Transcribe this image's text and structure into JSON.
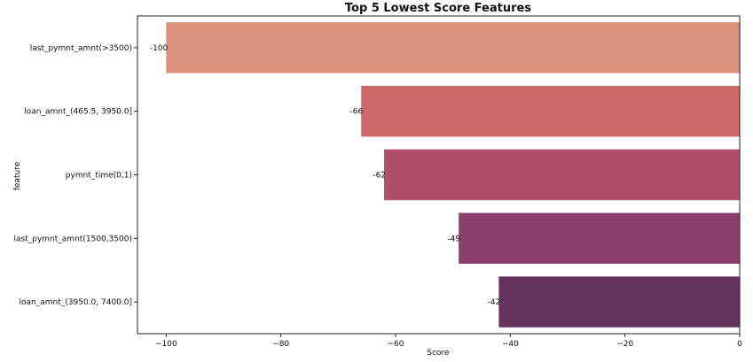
{
  "chart_data": {
    "type": "bar",
    "orientation": "horizontal",
    "title": "Top 5 Lowest Score Features",
    "xlabel": "Score",
    "ylabel": "feature",
    "categories": [
      "last_pymnt_amnt(>3500)",
      "loan_amnt_(465.5, 3950.0]",
      "pymnt_time(0,1)",
      "last_pymnt_amnt(1500,3500)",
      "loan_amnt_(3950.0, 7400.0]"
    ],
    "values": [
      -100,
      -66,
      -62,
      -49,
      -42
    ],
    "data_labels": [
      "-100",
      "-66",
      "-62",
      "-49",
      "-42"
    ],
    "colors": [
      "#db917a",
      "#cf6868",
      "#b04e6c",
      "#8b406c",
      "#66335f"
    ],
    "xlim": [
      -105,
      0
    ],
    "xticks": [
      -100,
      -80,
      -60,
      -40,
      -20,
      0
    ],
    "xtick_labels": [
      "−100",
      "−80",
      "−60",
      "−40",
      "−20",
      "0"
    ],
    "grid": false,
    "legend": false
  }
}
